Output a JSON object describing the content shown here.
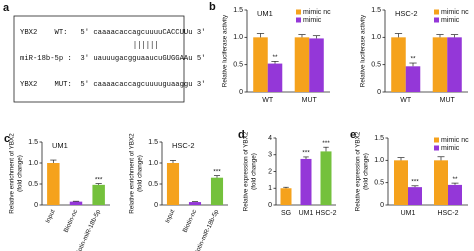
{
  "panel_a": {
    "letter": "a",
    "lines": [
      "YBX2    WT:   5' caaaacaccagcuuuuCACCUUu 3'",
      "miR-18b-5p :  3' uauuugacgguaaucuGUGGAAu 5'",
      "YBX2    MUT:  5' caaaacaccagcuuuuguaaggu 3'"
    ]
  },
  "chart_data": [
    {
      "type": "bar",
      "panel": "b",
      "title": "UM1",
      "categories": [
        "WT",
        "MUT"
      ],
      "series": [
        {
          "name": "mimic nc",
          "color": "#f5a21c",
          "values": [
            1.0,
            1.0
          ],
          "errors": [
            0.07,
            0.05
          ],
          "annotations": [
            null,
            null
          ]
        },
        {
          "name": "mimic",
          "color": "#9437d8",
          "values": [
            0.52,
            0.98
          ],
          "errors": [
            0.04,
            0.05
          ],
          "annotations": [
            "**",
            null
          ]
        }
      ],
      "ylim": [
        0,
        1.5
      ],
      "yticks": [
        0,
        0.5,
        {
          "value": 1,
          "label": "1.0"
        },
        1.5
      ],
      "ylabel": [
        "Relative luciferase activity"
      ],
      "legend": "upper right"
    },
    {
      "type": "bar",
      "title": "HSC-2",
      "categories": [
        "WT",
        "MUT"
      ],
      "series": [
        {
          "name": "mimic nc",
          "color": "#f5a21c",
          "values": [
            1.0,
            1.0
          ],
          "errors": [
            0.07,
            0.05
          ],
          "annotations": [
            null,
            null
          ]
        },
        {
          "name": "mimic",
          "color": "#9437d8",
          "values": [
            0.47,
            1.0
          ],
          "errors": [
            0.06,
            0.05
          ],
          "annotations": [
            "**",
            null
          ]
        }
      ],
      "ylim": [
        0,
        1.5
      ],
      "yticks": [
        0,
        0.5,
        {
          "value": 1,
          "label": "1.0"
        },
        1.5
      ],
      "ylabel": [
        "Relative luciferase activity"
      ],
      "legend": "upper right"
    },
    {
      "type": "bar",
      "panel": "c",
      "title": "UM1",
      "categories": [
        "Input",
        "Biotin-nc",
        "Biotin-miR-18b-5p"
      ],
      "values": [
        1.0,
        0.08,
        0.48
      ],
      "errors": [
        0.07,
        0.01,
        0.03
      ],
      "annotations": [
        null,
        null,
        "***"
      ],
      "colors": [
        "#f5a21c",
        "#9437d8",
        "#74c13c"
      ],
      "ylim": [
        0,
        1.5
      ],
      "yticks": [
        0,
        0.5,
        {
          "value": 1,
          "label": "1.0"
        },
        1.5
      ],
      "ylabel": [
        "Relative enrichment of YBX2",
        "(fold change)"
      ]
    },
    {
      "type": "bar",
      "title": "HSC-2",
      "categories": [
        "Input",
        "Biotin-nc",
        "Biotin-miR-18b-5p"
      ],
      "values": [
        1.0,
        0.07,
        0.65
      ],
      "errors": [
        0.06,
        0.01,
        0.05
      ],
      "annotations": [
        null,
        null,
        "***"
      ],
      "colors": [
        "#f5a21c",
        "#9437d8",
        "#74c13c"
      ],
      "ylim": [
        0,
        1.5
      ],
      "yticks": [
        0,
        0.5,
        {
          "value": 1,
          "label": "1.0"
        },
        1.5
      ],
      "ylabel": [
        "Relative enrichment of YBX2",
        "(fold change)"
      ]
    },
    {
      "type": "bar",
      "panel": "d",
      "categories": [
        "SG",
        "UM1",
        "HSC-2"
      ],
      "values": [
        1.0,
        2.75,
        3.2
      ],
      "errors": [
        0.06,
        0.12,
        0.25
      ],
      "annotations": [
        null,
        "***",
        "***"
      ],
      "colors": [
        "#f5a21c",
        "#9437d8",
        "#74c13c"
      ],
      "ylim": [
        0,
        4
      ],
      "yticks": [
        0,
        1,
        2,
        3,
        4
      ],
      "ylabel": [
        "Relative expression of YBX2",
        "(fold change)"
      ]
    },
    {
      "type": "bar",
      "panel": "e",
      "categories": [
        "UM1",
        "HSC-2"
      ],
      "series": [
        {
          "name": "mimic nc",
          "color": "#f5a21c",
          "values": [
            1.0,
            1.0
          ],
          "errors": [
            0.06,
            0.08
          ],
          "annotations": [
            null,
            null
          ]
        },
        {
          "name": "mimic",
          "color": "#9437d8",
          "values": [
            0.4,
            0.45
          ],
          "errors": [
            0.03,
            0.04
          ],
          "annotations": [
            "***",
            "**"
          ]
        }
      ],
      "ylim": [
        0,
        1.5
      ],
      "yticks": [
        0,
        0.5,
        {
          "value": 1,
          "label": "1.0"
        },
        1.5
      ],
      "ylabel": [
        "Relative expression of YBX2",
        "(fold change)"
      ],
      "legend": "upper right"
    }
  ]
}
